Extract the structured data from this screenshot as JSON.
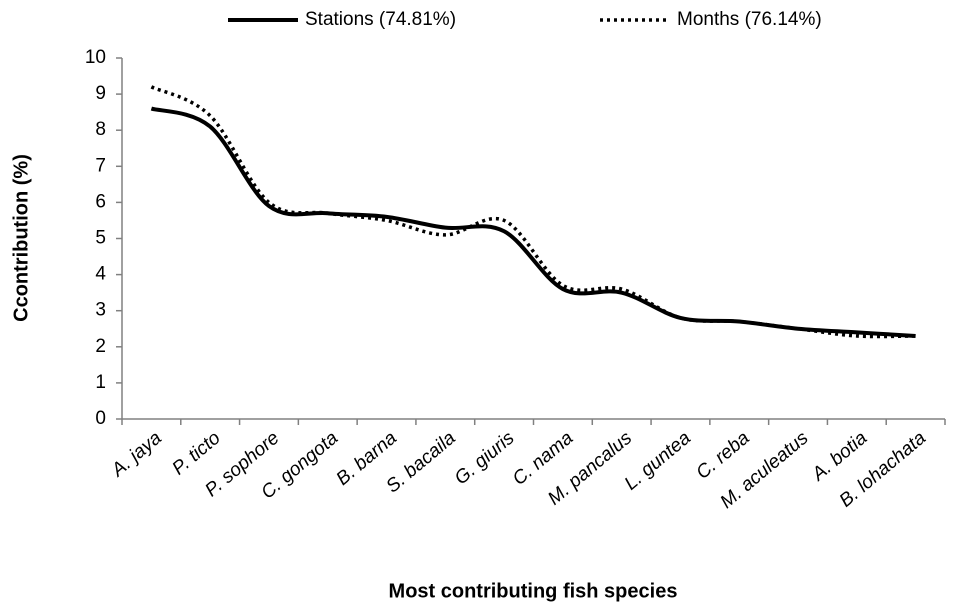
{
  "chart_data": {
    "type": "line",
    "x_label": "Most contributing fish species",
    "y_label": "Ccontribution (%)",
    "categories": [
      "A. jaya",
      "P. ticto",
      "P. sophore",
      "C. gongota",
      "B. barna",
      "S. bacaila",
      "G. giuris",
      "C. nama",
      "M. pancalus",
      "L. guntea",
      "C. reba",
      "M. aculeatus",
      "A. botia",
      "B. lohachata"
    ],
    "series": [
      {
        "name": "Stations (74.81%)",
        "color": "#000000",
        "dash": "solid",
        "values": [
          8.6,
          8.1,
          5.9,
          5.7,
          5.6,
          5.3,
          5.2,
          3.6,
          3.5,
          2.8,
          2.7,
          2.5,
          2.4,
          2.3
        ]
      },
      {
        "name": "Months (76.14%)",
        "color": "#000000",
        "dash": "dotted",
        "values": [
          9.2,
          8.4,
          6.0,
          5.7,
          5.5,
          5.1,
          5.5,
          3.7,
          3.6,
          2.8,
          2.7,
          2.5,
          2.3,
          2.3
        ]
      }
    ],
    "ylim": [
      0,
      10
    ],
    "yticks": [
      0,
      1,
      2,
      3,
      4,
      5,
      6,
      7,
      8,
      9,
      10
    ],
    "grid": false,
    "smooth": true,
    "legend": "top"
  }
}
